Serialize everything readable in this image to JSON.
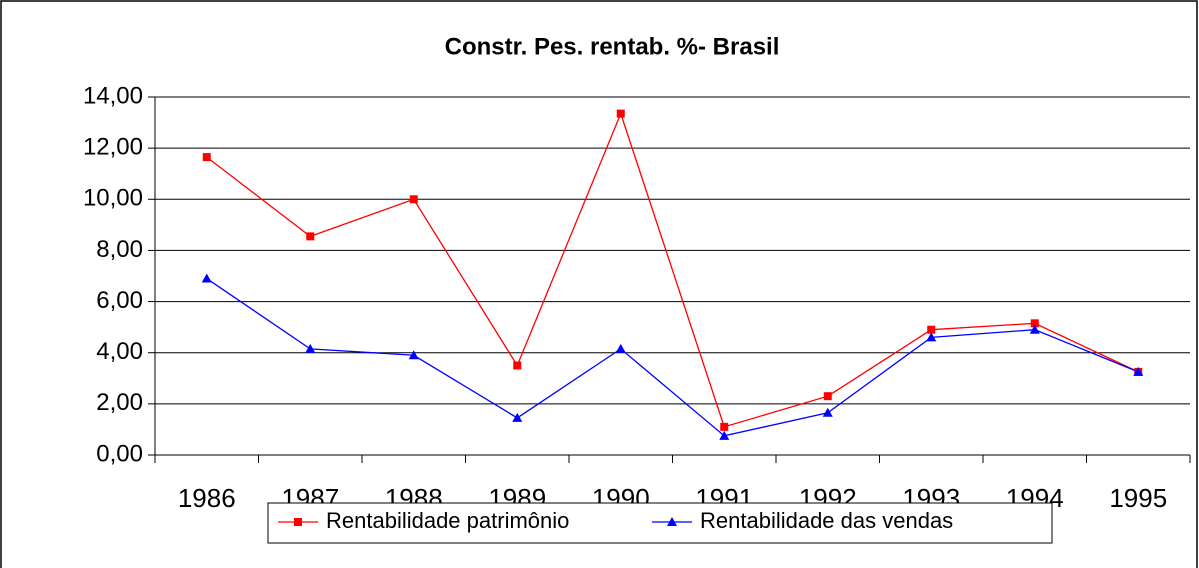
{
  "chart_data": {
    "type": "line",
    "title": "Constr. Pes. rentab. %- Brasil",
    "categories": [
      "1986",
      "1987",
      "1988",
      "1989",
      "1990",
      "1991",
      "1992",
      "1993",
      "1994",
      "1995"
    ],
    "series": [
      {
        "name": "Rentabilidade patrimônio",
        "color": "#ff0000",
        "marker": "square",
        "values": [
          11.65,
          8.55,
          10.0,
          3.5,
          13.35,
          1.1,
          2.3,
          4.9,
          5.15,
          3.25
        ]
      },
      {
        "name": "Rentabilidade das vendas",
        "color": "#0000ff",
        "marker": "triangle",
        "values": [
          6.9,
          4.15,
          3.9,
          1.45,
          4.15,
          0.75,
          1.65,
          4.6,
          4.9,
          3.25
        ]
      }
    ],
    "ylim": [
      0,
      14
    ],
    "yticks": [
      {
        "value": 0,
        "label": "0,00"
      },
      {
        "value": 2,
        "label": "2,00"
      },
      {
        "value": 4,
        "label": "4,00"
      },
      {
        "value": 6,
        "label": "6,00"
      },
      {
        "value": 8,
        "label": "8,00"
      },
      {
        "value": 10,
        "label": "10,00"
      },
      {
        "value": 12,
        "label": "12,00"
      },
      {
        "value": 14,
        "label": "14,00"
      }
    ],
    "grid": true,
    "legend": "bottom"
  }
}
